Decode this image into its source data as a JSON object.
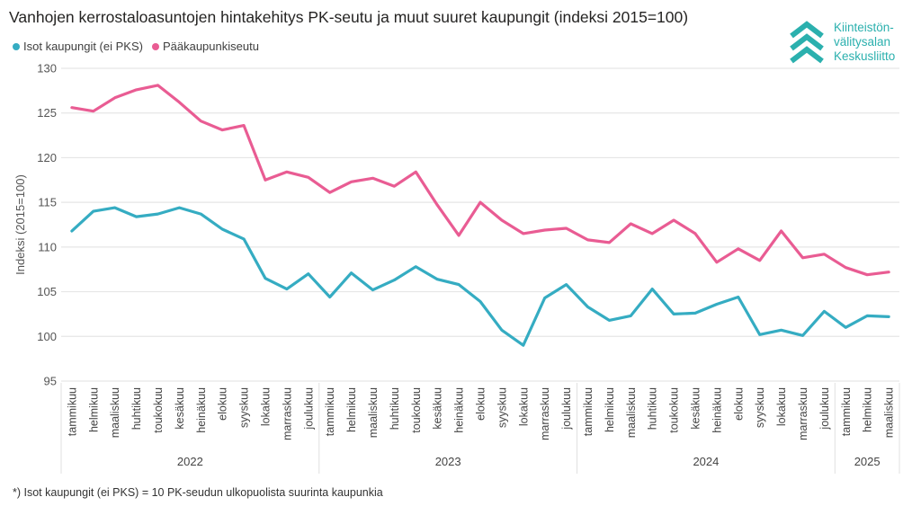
{
  "title": "Vanhojen kerrostaloasuntojen hintakehitys PK-seutu ja muut suuret kaupungit (indeksi 2015=100)",
  "legend": [
    {
      "name": "Isot kaupungit (ei PKS)",
      "color": "#35acc2"
    },
    {
      "name": "Pääkaupunkiseutu",
      "color": "#e95c93"
    }
  ],
  "logo": {
    "lines": [
      "Kiinteistön-",
      "välitysalan",
      "Keskusliitto"
    ],
    "color": "#2bb0ae",
    "icon": "chevron-stack-icon"
  },
  "footnote": "*) Isot kaupungit (ei PKS) = 10 PK-seudun ulkopuolista suurinta kaupunkia",
  "chart_data": {
    "type": "line",
    "ylabel": "Indeksi (2015=100)",
    "ylim": [
      95,
      130
    ],
    "yticks": [
      95,
      100,
      105,
      110,
      115,
      120,
      125,
      130
    ],
    "grid": true,
    "legend_position": "top-left",
    "categories": [
      "tammikuu",
      "helmikuu",
      "maaliskuu",
      "huhtikuu",
      "toukokuu",
      "kesäkuu",
      "heinäkuu",
      "elokuu",
      "syyskuu",
      "lokakuu",
      "marraskuu",
      "joulukuu",
      "tammikuu",
      "helmikuu",
      "maaliskuu",
      "huhtikuu",
      "toukokuu",
      "kesäkuu",
      "heinäkuu",
      "elokuu",
      "syyskuu",
      "lokakuu",
      "marraskuu",
      "joulukuu",
      "tammikuu",
      "helmikuu",
      "maaliskuu",
      "huhtikuu",
      "toukokuu",
      "kesäkuu",
      "heinäkuu",
      "elokuu",
      "syyskuu",
      "lokakuu",
      "marraskuu",
      "joulukuu",
      "tammikuu",
      "helmikuu",
      "maaliskuu"
    ],
    "years": [
      {
        "label": "2022",
        "count": 12
      },
      {
        "label": "2023",
        "count": 12
      },
      {
        "label": "2024",
        "count": 12
      },
      {
        "label": "2025",
        "count": 3
      }
    ],
    "series": [
      {
        "name": "Isot kaupungit (ei PKS)",
        "color": "#35acc2",
        "values": [
          111.8,
          114.0,
          114.4,
          113.4,
          113.7,
          114.4,
          113.7,
          112.0,
          110.9,
          106.5,
          105.3,
          107.0,
          104.4,
          107.1,
          105.2,
          106.3,
          107.8,
          106.4,
          105.8,
          103.9,
          100.7,
          99.0,
          104.3,
          105.8,
          103.3,
          101.8,
          102.3,
          105.3,
          102.5,
          102.6,
          103.6,
          104.4,
          100.2,
          100.7,
          100.1,
          102.8,
          101.0,
          102.3,
          102.2
        ]
      },
      {
        "name": "Pääkaupunkiseutu",
        "color": "#e95c93",
        "values": [
          125.6,
          125.2,
          126.7,
          127.6,
          128.1,
          126.2,
          124.1,
          123.1,
          123.6,
          117.5,
          118.4,
          117.8,
          116.1,
          117.3,
          117.7,
          116.8,
          118.4,
          114.7,
          111.3,
          115.0,
          113.0,
          111.5,
          111.9,
          112.1,
          110.8,
          110.5,
          112.6,
          111.5,
          113.0,
          111.5,
          108.3,
          109.8,
          108.5,
          111.8,
          108.8,
          109.2,
          107.7,
          106.9,
          107.2
        ]
      }
    ]
  }
}
